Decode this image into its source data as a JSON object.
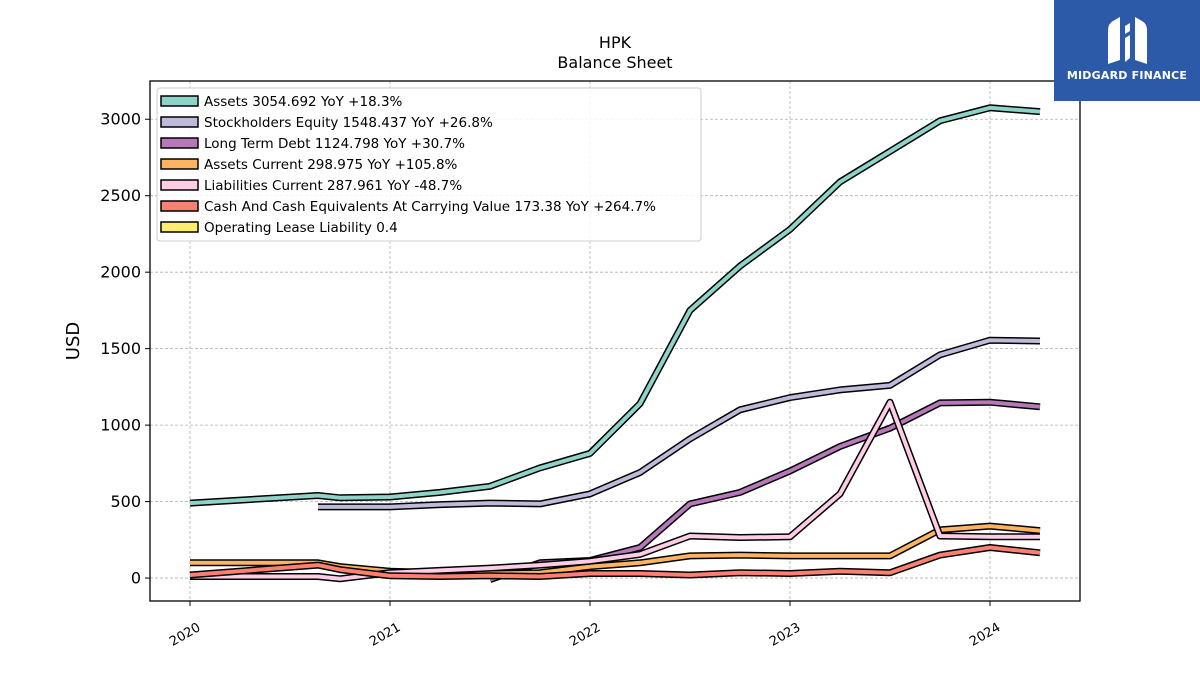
{
  "brand": {
    "name": "MIDGARD FINANCE",
    "color": "#2d5aa8",
    "icon": "midgard-logo-icon"
  },
  "chart_data": {
    "type": "line",
    "title": "HPK",
    "subtitle": "Balance  Sheet",
    "xlabel": "",
    "ylabel": "USD",
    "xlim": [
      2019.8,
      2024.45
    ],
    "ylim": [
      -150,
      3250
    ],
    "x_ticks": [
      2020,
      2021,
      2022,
      2023,
      2024
    ],
    "x_tick_labels": [
      "2020",
      "2021",
      "2022",
      "2023",
      "2024"
    ],
    "y_ticks": [
      0,
      500,
      1000,
      1500,
      2000,
      2500,
      3000
    ],
    "y_tick_labels": [
      "0",
      "500",
      "1000",
      "1500",
      "2000",
      "2500",
      "3000"
    ],
    "grid": true,
    "legend_position": "top-left",
    "series": [
      {
        "name": "Assets",
        "legend": "Assets  3054.692 YoY +18.3%",
        "color": "#8dd3c7",
        "x": [
          2020.0,
          2020.64,
          2020.75,
          2021.0,
          2021.25,
          2021.5,
          2021.75,
          2022.0,
          2022.25,
          2022.5,
          2022.75,
          2023.0,
          2023.25,
          2023.5,
          2023.75,
          2024.0,
          2024.25
        ],
        "y": [
          490,
          540,
          525,
          530,
          560,
          600,
          720,
          815,
          1140,
          1750,
          2040,
          2280,
          2590,
          2790,
          2990,
          3075,
          3050
        ]
      },
      {
        "name": "Stockholders Equity",
        "legend": "Stockholders Equity  1548.437 YoY +26.8%",
        "color": "#bebada",
        "x": [
          2020.64,
          2021.0,
          2021.25,
          2021.5,
          2021.75,
          2022.0,
          2022.25,
          2022.5,
          2022.75,
          2023.0,
          2023.25,
          2023.5,
          2023.75,
          2024.0,
          2024.25
        ],
        "y": [
          465,
          465,
          480,
          490,
          485,
          550,
          690,
          910,
          1100,
          1180,
          1230,
          1260,
          1460,
          1555,
          1550
        ]
      },
      {
        "name": "Long Term Debt",
        "legend": "Long Term Debt  1124.798 YoY +30.7%",
        "color": "#b678b8",
        "x": [
          2021.5,
          2021.75,
          2022.0,
          2022.25,
          2022.5,
          2022.75,
          2023.0,
          2023.25,
          2023.5,
          2023.75,
          2024.0,
          2024.25
        ],
        "y": [
          -10,
          100,
          115,
          200,
          485,
          560,
          700,
          860,
          980,
          1145,
          1150,
          1120
        ]
      },
      {
        "name": "Assets Current",
        "legend": "Assets Current  298.975 YoY +105.8%",
        "color": "#fdb462",
        "x": [
          2020.0,
          2020.64,
          2020.75,
          2021.0,
          2021.25,
          2021.5,
          2021.75,
          2022.0,
          2022.25,
          2022.5,
          2022.75,
          2023.0,
          2023.25,
          2023.5,
          2023.75,
          2024.0,
          2024.25
        ],
        "y": [
          100,
          100,
          75,
          45,
          35,
          30,
          35,
          75,
          100,
          145,
          150,
          145,
          145,
          145,
          315,
          340,
          310
        ]
      },
      {
        "name": "Liabilities Current",
        "legend": "Liabilities Current  287.961 YoY -48.7%",
        "color": "#fccde5",
        "x": [
          2020.0,
          2020.64,
          2020.75,
          2021.0,
          2021.25,
          2021.5,
          2021.75,
          2022.0,
          2022.25,
          2022.5,
          2022.75,
          2023.0,
          2023.25,
          2023.5,
          2023.75,
          2024.0,
          2024.25
        ],
        "y": [
          10,
          10,
          -5,
          35,
          50,
          65,
          85,
          110,
          155,
          275,
          265,
          270,
          550,
          1150,
          275,
          270,
          270
        ]
      },
      {
        "name": "Cash And Cash Equivalents At Carrying Value",
        "legend": "Cash And Cash Equivalents At Carrying Value  173.38 YoY +264.7%",
        "color": "#fb8072",
        "x": [
          2020.0,
          2020.64,
          2020.75,
          2021.0,
          2021.25,
          2021.5,
          2021.75,
          2022.0,
          2022.25,
          2022.5,
          2022.75,
          2023.0,
          2023.25,
          2023.5,
          2023.75,
          2024.0,
          2024.25
        ],
        "y": [
          20,
          85,
          55,
          15,
          10,
          15,
          10,
          30,
          30,
          20,
          35,
          30,
          45,
          35,
          150,
          200,
          165
        ]
      },
      {
        "name": "Operating Lease Liability",
        "legend": "Operating Lease Liability  0.4",
        "color": "#ffed6f",
        "x": [],
        "y": []
      }
    ]
  }
}
